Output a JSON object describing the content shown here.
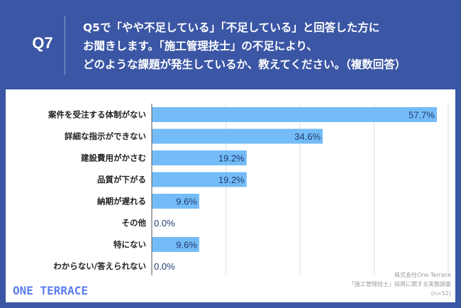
{
  "header": {
    "question_number": "Q7",
    "question_lines": [
      "Q5で「やや不足している」「不足している」と回答した方に",
      "お聞きします。「施工管理技士」の不足により、",
      "どのような課題が発生しているか、教えてください。（複数回答）"
    ]
  },
  "chart_data": {
    "type": "bar",
    "orientation": "horizontal",
    "categories": [
      "案件を受注する体制がない",
      "詳細な指示ができない",
      "建設費用がかさむ",
      "品質が下がる",
      "納期が遅れる",
      "その他",
      "特にない",
      "わからない/答えられない"
    ],
    "values": [
      57.7,
      34.6,
      19.2,
      19.2,
      9.6,
      0.0,
      9.6,
      0.0
    ],
    "value_labels": [
      "57.7%",
      "34.6%",
      "19.2%",
      "19.2%",
      "9.6%",
      "0.0%",
      "9.6%",
      "0.0%"
    ],
    "unit": "%",
    "xlim": [
      0,
      60
    ],
    "grid": true,
    "grid_step": 15,
    "bar_color": "#74bcf8",
    "label_color": "#1f3a6e"
  },
  "footer": {
    "logo": "ONE TERRACE",
    "source_lines": [
      "株式会社One Terrace",
      "「施工管理技士」採用に関する実態調査",
      "(n=52)"
    ]
  }
}
